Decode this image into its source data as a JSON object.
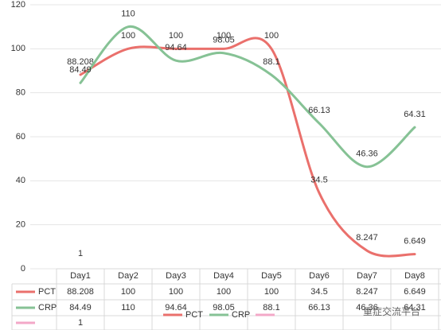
{
  "chart_data": {
    "type": "line",
    "categories": [
      "Day1",
      "Day2",
      "Day3",
      "Day4",
      "Day5",
      "Day6",
      "Day7",
      "Day8"
    ],
    "series": [
      {
        "name": "PCT",
        "color": "#ea706c",
        "values": [
          88.208,
          100,
          100,
          100,
          100,
          34.5,
          8.247,
          6.649
        ]
      },
      {
        "name": "CRP",
        "color": "#86c295",
        "values": [
          84.49,
          110,
          94.64,
          98.05,
          88.1,
          66.13,
          46.36,
          64.31
        ]
      },
      {
        "color": "#f3a8c8",
        "values": [
          1,
          null,
          null,
          null,
          null,
          null,
          null,
          null
        ]
      }
    ],
    "ylim": [
      0,
      120
    ],
    "yticks": [
      0,
      20,
      40,
      60,
      80,
      100,
      120
    ],
    "grid": true,
    "smooth": true,
    "legend": "bottom",
    "watermark": "重症交流平台"
  }
}
